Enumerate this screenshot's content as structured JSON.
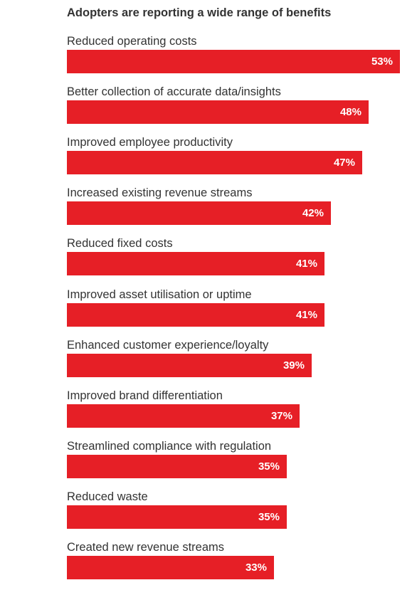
{
  "chart_data": {
    "type": "bar",
    "orientation": "horizontal",
    "title": "Adopters are reporting a wide range of benefits",
    "categories": [
      "Reduced operating costs",
      "Better collection of accurate data/insights",
      "Improved employee productivity",
      "Increased existing revenue streams",
      "Reduced fixed costs",
      "Improved asset utilisation or uptime",
      "Enhanced customer experience/loyalty",
      "Improved brand differentiation",
      "Streamlined compliance with regulation",
      "Reduced waste",
      "Created new revenue streams"
    ],
    "values": [
      53,
      48,
      47,
      42,
      41,
      41,
      39,
      37,
      35,
      35,
      33
    ],
    "value_labels": [
      "53%",
      "48%",
      "47%",
      "42%",
      "41%",
      "41%",
      "39%",
      "37%",
      "35%",
      "35%",
      "33%"
    ],
    "unit": "%",
    "xlim": [
      0,
      53
    ],
    "grid": false,
    "legend": "none",
    "bar_color": "#E61F26"
  }
}
